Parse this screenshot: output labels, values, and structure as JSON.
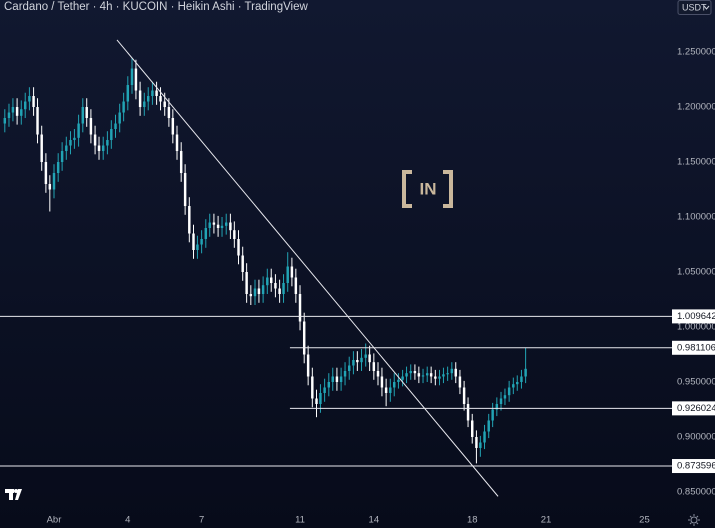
{
  "chart_data": {
    "type": "candlestick",
    "title": "Cardano / Tether · 4h · KUCOIN · Heikin Ashi · TradingView",
    "currency": "USDT",
    "watermark": "IN",
    "up_color": "#22a4b5",
    "down_color": "#ffffff",
    "grid": false,
    "xlim": [
      -1.195,
      26.12
    ],
    "ylim": [
      0.8318,
      1.2973
    ],
    "xticks": [
      {
        "value": 1,
        "label": "Abr"
      },
      4,
      7,
      11,
      14,
      18,
      21,
      25
    ],
    "yticks": [
      {
        "value": 0.85,
        "label": "0.850000"
      },
      {
        "value": 0.9,
        "label": "0.900000"
      },
      {
        "value": 0.95,
        "label": "0.950000"
      },
      {
        "value": 1.0,
        "label": "1.000000"
      },
      {
        "value": 1.05,
        "label": "1.050000"
      },
      {
        "value": 1.1,
        "label": "1.100000"
      },
      {
        "value": 1.15,
        "label": "1.150000"
      },
      {
        "value": 1.2,
        "label": "1.200000"
      },
      {
        "value": 1.25,
        "label": "1.250000"
      }
    ],
    "x": [
      -1,
      -0.83,
      -0.67,
      -0.5,
      -0.33,
      -0.17,
      0,
      0.17,
      0.33,
      0.5,
      0.67,
      0.83,
      1,
      1.17,
      1.33,
      1.5,
      1.67,
      1.83,
      2,
      2.17,
      2.33,
      2.5,
      2.67,
      2.83,
      3,
      3.17,
      3.33,
      3.5,
      3.67,
      3.83,
      4,
      4.17,
      4.33,
      4.5,
      4.67,
      4.83,
      5,
      5.17,
      5.33,
      5.5,
      5.67,
      5.83,
      6,
      6.17,
      6.33,
      6.5,
      6.67,
      6.83,
      7,
      7.17,
      7.33,
      7.5,
      7.67,
      7.83,
      8,
      8.17,
      8.33,
      8.5,
      8.67,
      8.83,
      9,
      9.17,
      9.33,
      9.5,
      9.67,
      9.83,
      10,
      10.17,
      10.33,
      10.5,
      10.67,
      10.83,
      11,
      11.17,
      11.33,
      11.5,
      11.67,
      11.83,
      12,
      12.17,
      12.33,
      12.5,
      12.67,
      12.83,
      13,
      13.17,
      13.33,
      13.5,
      13.67,
      13.83,
      14,
      14.17,
      14.33,
      14.5,
      14.67,
      14.83,
      15,
      15.17,
      15.33,
      15.5,
      15.67,
      15.83,
      16,
      16.17,
      16.33,
      16.5,
      16.67,
      16.83,
      17,
      17.17,
      17.33,
      17.5,
      17.67,
      17.83,
      18,
      18.17,
      18.33,
      18.5,
      18.67,
      18.83,
      19,
      19.17,
      19.33,
      19.5,
      19.67,
      19.83,
      20,
      20.17
    ],
    "open": [
      1.185,
      1.19,
      1.195,
      1.2,
      1.192,
      1.198,
      1.205,
      1.21,
      1.2,
      1.175,
      1.15,
      1.13,
      1.125,
      1.14,
      1.15,
      1.16,
      1.165,
      1.17,
      1.172,
      1.185,
      1.2,
      1.19,
      1.175,
      1.165,
      1.16,
      1.165,
      1.17,
      1.18,
      1.185,
      1.195,
      1.205,
      1.22,
      1.235,
      1.215,
      1.2,
      1.205,
      1.21,
      1.215,
      1.21,
      1.205,
      1.2,
      1.19,
      1.175,
      1.16,
      1.14,
      1.11,
      1.085,
      1.07,
      1.075,
      1.08,
      1.09,
      1.095,
      1.093,
      1.09,
      1.092,
      1.095,
      1.088,
      1.08,
      1.065,
      1.05,
      1.03,
      1.028,
      1.035,
      1.03,
      1.038,
      1.045,
      1.04,
      1.035,
      1.03,
      1.04,
      1.055,
      1.045,
      1.03,
      1.005,
      0.975,
      0.955,
      0.935,
      0.93,
      0.94,
      0.945,
      0.95,
      0.955,
      0.95,
      0.955,
      0.96,
      0.965,
      0.97,
      0.968,
      0.972,
      0.975,
      0.968,
      0.96,
      0.955,
      0.945,
      0.94,
      0.945,
      0.95,
      0.952,
      0.955,
      0.958,
      0.96,
      0.958,
      0.955,
      0.956,
      0.958,
      0.955,
      0.953,
      0.955,
      0.957,
      0.958,
      0.962,
      0.955,
      0.945,
      0.93,
      0.915,
      0.9,
      0.89,
      0.895,
      0.905,
      0.915,
      0.925,
      0.93,
      0.935,
      0.938,
      0.945,
      0.948,
      0.95,
      0.955
    ],
    "close": [
      1.19,
      1.195,
      1.2,
      1.192,
      1.198,
      1.205,
      1.21,
      1.2,
      1.175,
      1.15,
      1.13,
      1.125,
      1.14,
      1.15,
      1.16,
      1.165,
      1.17,
      1.172,
      1.185,
      1.2,
      1.19,
      1.175,
      1.165,
      1.16,
      1.165,
      1.17,
      1.18,
      1.185,
      1.195,
      1.205,
      1.22,
      1.235,
      1.215,
      1.2,
      1.205,
      1.21,
      1.215,
      1.21,
      1.205,
      1.2,
      1.19,
      1.175,
      1.16,
      1.14,
      1.11,
      1.085,
      1.07,
      1.075,
      1.08,
      1.09,
      1.095,
      1.093,
      1.09,
      1.092,
      1.095,
      1.088,
      1.08,
      1.065,
      1.05,
      1.03,
      1.028,
      1.035,
      1.03,
      1.038,
      1.045,
      1.04,
      1.035,
      1.03,
      1.04,
      1.055,
      1.045,
      1.03,
      1.005,
      0.975,
      0.955,
      0.935,
      0.93,
      0.94,
      0.945,
      0.95,
      0.955,
      0.95,
      0.955,
      0.96,
      0.965,
      0.97,
      0.968,
      0.972,
      0.975,
      0.968,
      0.96,
      0.955,
      0.945,
      0.94,
      0.945,
      0.95,
      0.952,
      0.955,
      0.958,
      0.96,
      0.958,
      0.955,
      0.956,
      0.958,
      0.955,
      0.953,
      0.955,
      0.957,
      0.958,
      0.962,
      0.955,
      0.945,
      0.93,
      0.915,
      0.9,
      0.89,
      0.895,
      0.905,
      0.915,
      0.925,
      0.93,
      0.935,
      0.938,
      0.945,
      0.948,
      0.95,
      0.955,
      0.962
    ],
    "high": [
      1.198,
      1.203,
      1.208,
      1.208,
      1.206,
      1.213,
      1.218,
      1.218,
      1.208,
      1.183,
      1.158,
      1.138,
      1.148,
      1.158,
      1.168,
      1.173,
      1.178,
      1.18,
      1.193,
      1.208,
      1.208,
      1.198,
      1.183,
      1.173,
      1.173,
      1.178,
      1.188,
      1.193,
      1.203,
      1.213,
      1.228,
      1.245,
      1.243,
      1.223,
      1.213,
      1.218,
      1.223,
      1.223,
      1.218,
      1.213,
      1.208,
      1.198,
      1.183,
      1.168,
      1.148,
      1.118,
      1.093,
      1.083,
      1.088,
      1.098,
      1.103,
      1.103,
      1.101,
      1.1,
      1.103,
      1.103,
      1.096,
      1.088,
      1.073,
      1.058,
      1.038,
      1.043,
      1.043,
      1.046,
      1.053,
      1.053,
      1.048,
      1.043,
      1.048,
      1.068,
      1.063,
      1.053,
      1.038,
      1.013,
      0.983,
      0.963,
      0.943,
      0.948,
      0.953,
      0.958,
      0.963,
      0.963,
      0.963,
      0.968,
      0.973,
      0.978,
      0.978,
      0.98,
      0.985,
      0.983,
      0.976,
      0.968,
      0.963,
      0.953,
      0.953,
      0.958,
      0.958,
      0.961,
      0.964,
      0.966,
      0.966,
      0.964,
      0.962,
      0.964,
      0.964,
      0.961,
      0.961,
      0.963,
      0.964,
      0.968,
      0.968,
      0.961,
      0.951,
      0.936,
      0.921,
      0.906,
      0.901,
      0.911,
      0.921,
      0.931,
      0.936,
      0.941,
      0.944,
      0.951,
      0.954,
      0.956,
      0.961,
      0.981
    ],
    "low": [
      1.177,
      1.182,
      1.187,
      1.184,
      1.184,
      1.19,
      1.197,
      1.192,
      1.167,
      1.142,
      1.122,
      1.105,
      1.117,
      1.132,
      1.142,
      1.152,
      1.157,
      1.162,
      1.164,
      1.177,
      1.182,
      1.167,
      1.157,
      1.152,
      1.152,
      1.157,
      1.162,
      1.172,
      1.177,
      1.187,
      1.197,
      1.212,
      1.207,
      1.192,
      1.192,
      1.197,
      1.202,
      1.202,
      1.197,
      1.192,
      1.182,
      1.167,
      1.152,
      1.132,
      1.102,
      1.077,
      1.062,
      1.062,
      1.067,
      1.072,
      1.082,
      1.085,
      1.082,
      1.082,
      1.084,
      1.08,
      1.072,
      1.057,
      1.042,
      1.022,
      1.02,
      1.02,
      1.022,
      1.022,
      1.03,
      1.032,
      1.027,
      1.022,
      1.022,
      1.032,
      1.037,
      1.022,
      0.997,
      0.967,
      0.947,
      0.927,
      0.918,
      0.922,
      0.932,
      0.937,
      0.942,
      0.942,
      0.942,
      0.947,
      0.952,
      0.957,
      0.96,
      0.96,
      0.964,
      0.96,
      0.952,
      0.947,
      0.937,
      0.928,
      0.932,
      0.937,
      0.944,
      0.946,
      0.949,
      0.952,
      0.952,
      0.949,
      0.949,
      0.95,
      0.949,
      0.947,
      0.947,
      0.949,
      0.951,
      0.952,
      0.949,
      0.939,
      0.924,
      0.909,
      0.894,
      0.876,
      0.882,
      0.889,
      0.899,
      0.909,
      0.919,
      0.924,
      0.929,
      0.932,
      0.939,
      0.942,
      0.944,
      0.949
    ],
    "trendline": {
      "x": [
        3.56,
        19.05
      ],
      "y": [
        1.261,
        0.846
      ]
    },
    "levels": [
      {
        "value": 1.009642
      },
      {
        "value": 0.981106,
        "x_start": 10.59
      },
      {
        "value": 0.926024,
        "x_start": 10.59
      },
      {
        "value": 0.873596
      }
    ]
  }
}
